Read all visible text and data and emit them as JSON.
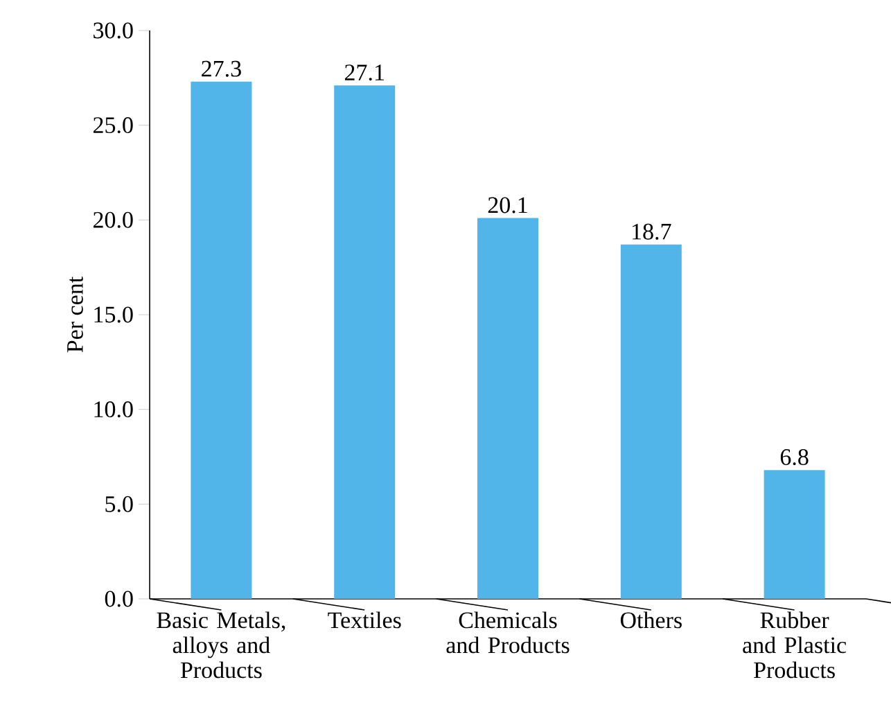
{
  "chart_data": {
    "type": "bar",
    "ylabel": "Per cent",
    "categories": [
      "Basic Metals, alloys and Products",
      "Textiles",
      "Chemicals and Products",
      "Others",
      "Rubber and Plastic Products"
    ],
    "values": [
      27.3,
      27.1,
      20.1,
      18.7,
      6.8
    ],
    "color": "#52b5e9",
    "ylim": [
      0,
      30
    ],
    "yticks": [
      {
        "value": 0,
        "label": "0.0"
      },
      {
        "value": 5,
        "label": "5.0"
      },
      {
        "value": 10,
        "label": "10.0"
      },
      {
        "value": 15,
        "label": "15.0"
      },
      {
        "value": 20,
        "label": "20.0"
      },
      {
        "value": 25,
        "label": "25.0"
      },
      {
        "value": 30,
        "label": "30.0"
      }
    ],
    "data_labels": true
  }
}
